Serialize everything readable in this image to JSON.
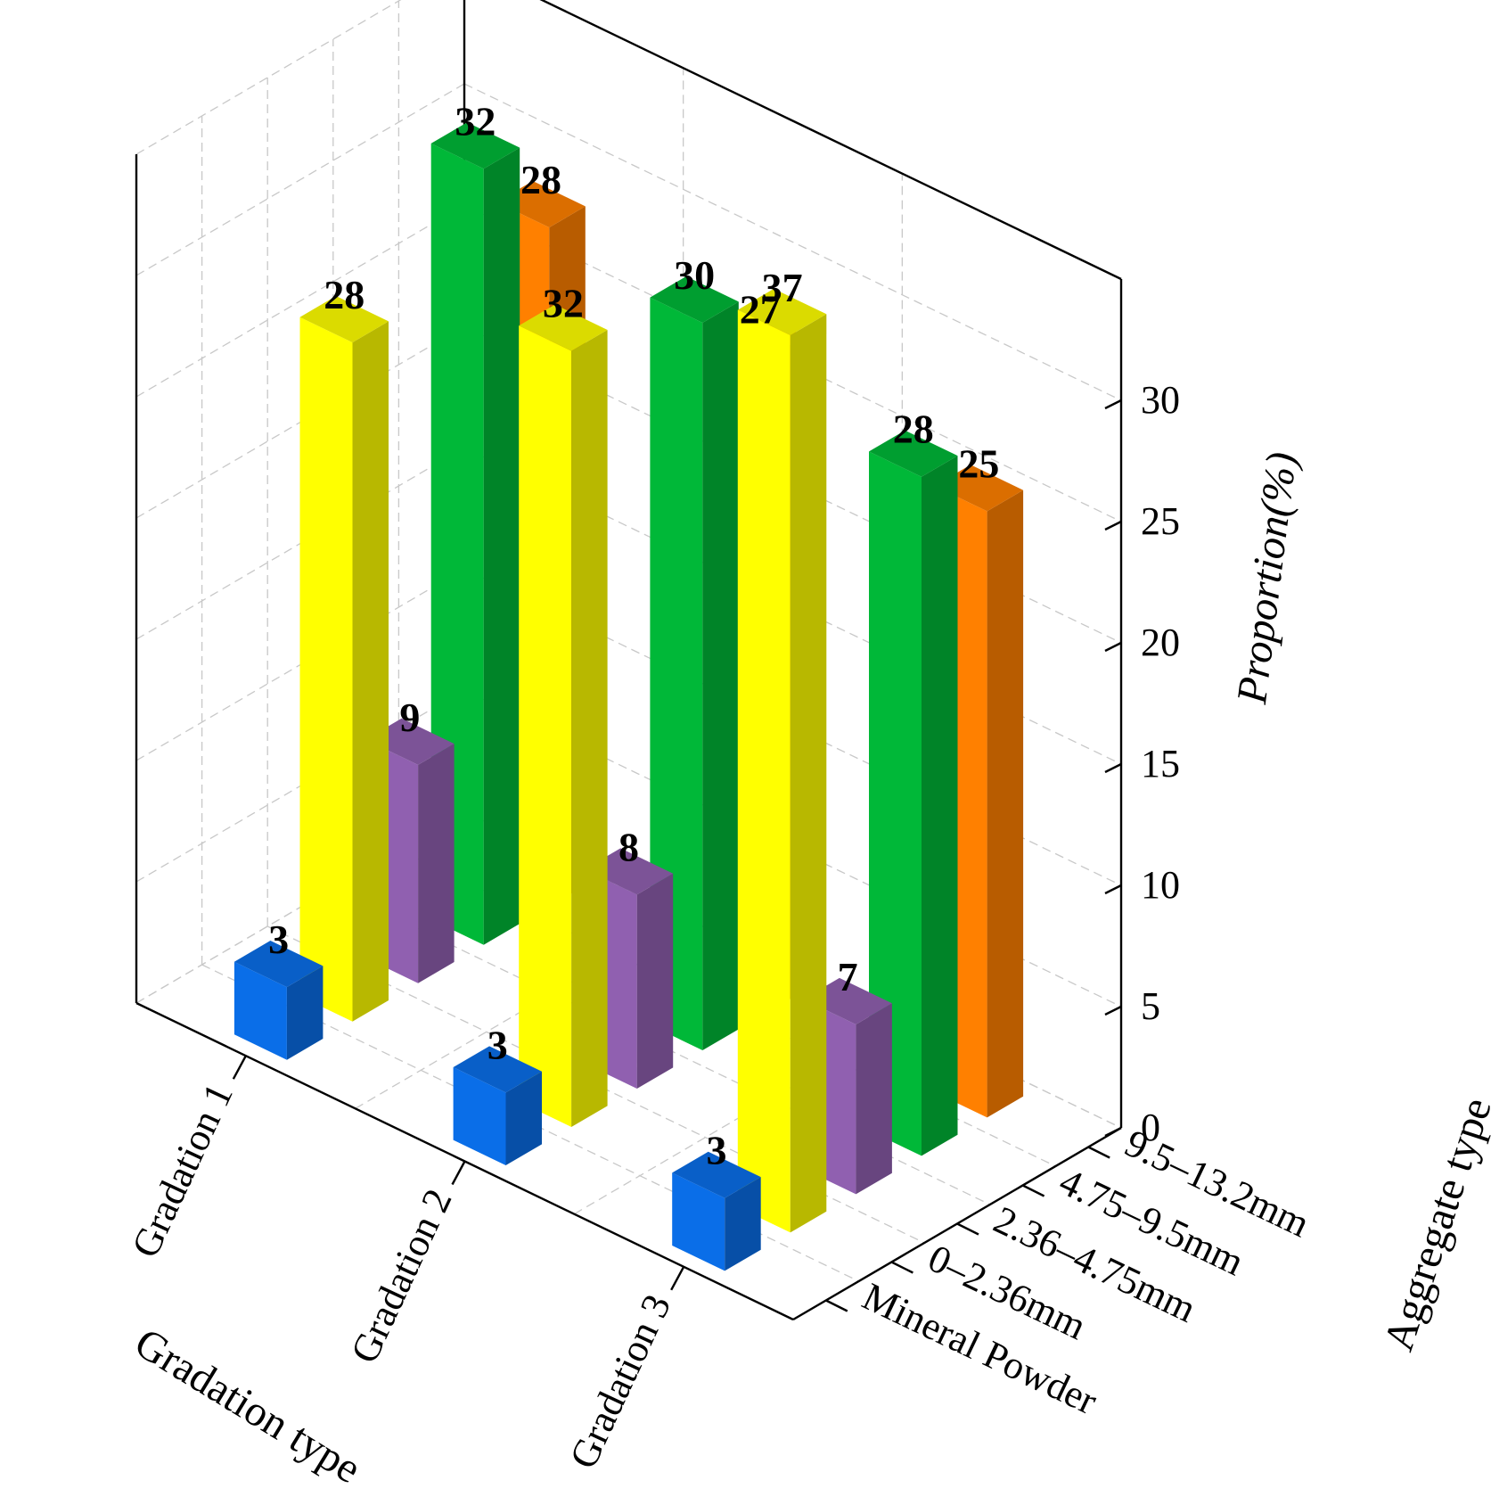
{
  "chart_data": {
    "type": "bar3d",
    "title": "",
    "x_axis": {
      "label": "Gradation type",
      "categories": [
        "Gradation 1",
        "Gradation 2",
        "Gradation 3"
      ]
    },
    "y_axis": {
      "label": "Aggregate type",
      "categories": [
        "Mineral Powder",
        "0–2.36mm",
        "2.36–4.75mm",
        "4.75–9.5mm",
        "9.5–13.2mm"
      ]
    },
    "z_axis": {
      "label": "Proportion(%)",
      "ticks": [
        0,
        5,
        10,
        15,
        20,
        25,
        30
      ],
      "range": [
        0,
        35
      ]
    },
    "series": [
      {
        "category": "Mineral Powder",
        "color": "#0a6ee8",
        "values": [
          3,
          3,
          3
        ]
      },
      {
        "category": "0–2.36mm",
        "color": "#ffff00",
        "values": [
          28,
          32,
          37
        ]
      },
      {
        "category": "2.36–4.75mm",
        "color": "#9060b0",
        "values": [
          9,
          8,
          7
        ]
      },
      {
        "category": "4.75–9.5mm",
        "color": "#00b838",
        "values": [
          32,
          30,
          28
        ]
      },
      {
        "category": "9.5–13.2mm",
        "color": "#ff8000",
        "values": [
          28,
          27,
          25
        ]
      }
    ],
    "grid": true
  }
}
